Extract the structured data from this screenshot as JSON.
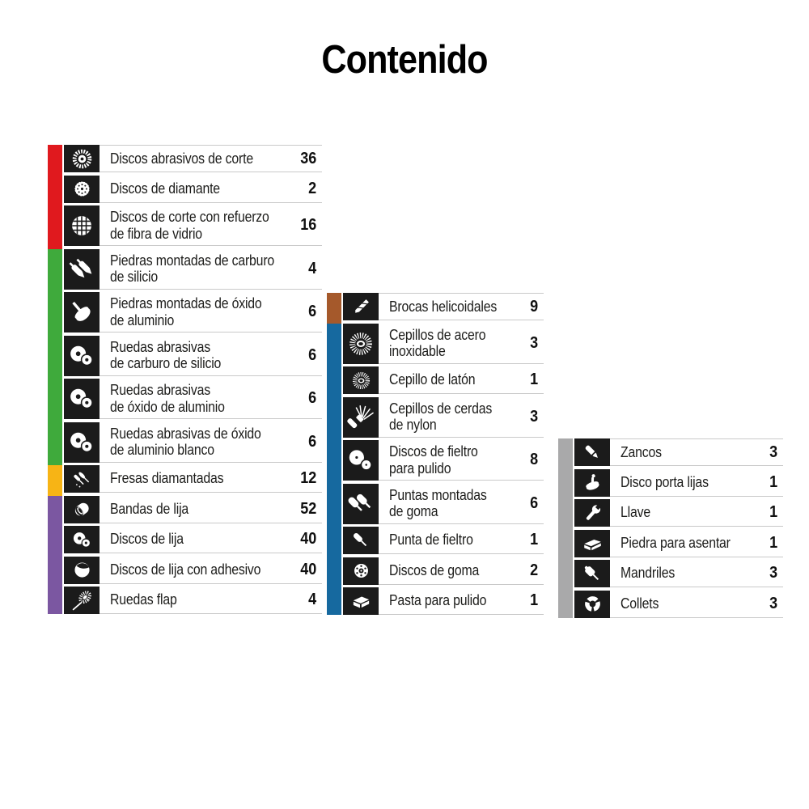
{
  "page": {
    "title": "Contenido"
  },
  "colors": {
    "background": "#ffffff",
    "icon_box": "#1b1b1b",
    "label_text": "#1d1d1b",
    "separator": "#c9c9c9",
    "red": "#e0191e",
    "green": "#3faa3c",
    "yellow": "#f7b415",
    "purple": "#7b57a1",
    "brown": "#a5592b",
    "blue": "#16699f",
    "gray": "#a9a9aa"
  },
  "columns": [
    {
      "name": "left",
      "items": [
        {
          "icon": "cut-disc-icon",
          "category": "red",
          "label": "Discos abrasivos de corte",
          "count": "36"
        },
        {
          "icon": "diamond-disc-icon",
          "category": "red",
          "label": "Discos de diamante",
          "count": "2"
        },
        {
          "icon": "fiberglass-disc-icon",
          "category": "red",
          "label": "Discos de corte con refuerzo\nde fibra de vidrio",
          "count": "16"
        },
        {
          "icon": "mounted-stones-icon",
          "category": "green",
          "label": "Piedras montadas de carburo\nde silicio",
          "count": "4"
        },
        {
          "icon": "mounted-stone-shaft-icon",
          "category": "green",
          "label": "Piedras montadas de óxido\nde aluminio",
          "count": "6"
        },
        {
          "icon": "abrasive-wheels-icon",
          "category": "green",
          "label": "Ruedas abrasivas\nde carburo de silicio",
          "count": "6"
        },
        {
          "icon": "abrasive-wheels-icon",
          "category": "green",
          "label": "Ruedas abrasivas\nde óxido de aluminio",
          "count": "6"
        },
        {
          "icon": "abrasive-wheels-icon",
          "category": "green",
          "label": "Ruedas abrasivas de óxido\nde aluminio blanco",
          "count": "6"
        },
        {
          "icon": "diamond-burrs-icon",
          "category": "yellow",
          "label": "Fresas diamantadas",
          "count": "12"
        },
        {
          "icon": "sanding-band-icon",
          "category": "purple",
          "label": "Bandas de lija",
          "count": "52"
        },
        {
          "icon": "sanding-discs-icon",
          "category": "purple",
          "label": "Discos de lija",
          "count": "40"
        },
        {
          "icon": "adhesive-disc-icon",
          "category": "purple",
          "label": "Discos de lija con adhesivo",
          "count": "40"
        },
        {
          "icon": "flap-wheel-icon",
          "category": "purple",
          "label": "Ruedas flap",
          "count": "4"
        }
      ]
    },
    {
      "name": "middle",
      "items": [
        {
          "icon": "drill-bit-icon",
          "category": "brown",
          "label": "Brocas helicoidales",
          "count": "9"
        },
        {
          "icon": "wire-brush-icon",
          "category": "blue",
          "label": "Cepillos de acero\ninoxidable",
          "count": "3"
        },
        {
          "icon": "wire-brush-icon",
          "category": "blue",
          "label": "Cepillo de latón",
          "count": "1"
        },
        {
          "icon": "nylon-brush-icon",
          "category": "blue",
          "label": "Cepillos de cerdas\nde nylon",
          "count": "3"
        },
        {
          "icon": "felt-discs-icon",
          "category": "blue",
          "label": "Discos de fieltro\npara pulido",
          "count": "8"
        },
        {
          "icon": "rubber-points-icon",
          "category": "blue",
          "label": "Puntas montadas\nde goma",
          "count": "6"
        },
        {
          "icon": "felt-point-icon",
          "category": "blue",
          "label": "Punta de fieltro",
          "count": "1"
        },
        {
          "icon": "rubber-discs-icon",
          "category": "blue",
          "label": "Discos de goma",
          "count": "2"
        },
        {
          "icon": "polish-paste-icon",
          "category": "blue",
          "label": "Pasta para pulido",
          "count": "1"
        }
      ]
    },
    {
      "name": "right",
      "items": [
        {
          "icon": "shank-icon",
          "category": "gray",
          "label": "Zancos",
          "count": "3"
        },
        {
          "icon": "backing-pad-icon",
          "category": "gray",
          "label": "Disco porta lijas",
          "count": "1"
        },
        {
          "icon": "wrench-icon",
          "category": "gray",
          "label": "Llave",
          "count": "1"
        },
        {
          "icon": "sharpening-stone-icon",
          "category": "gray",
          "label": "Piedra para asentar",
          "count": "1"
        },
        {
          "icon": "mandrel-icon",
          "category": "gray",
          "label": "Mandriles",
          "count": "3"
        },
        {
          "icon": "collet-icon",
          "category": "gray",
          "label": "Collets",
          "count": "3"
        }
      ]
    }
  ]
}
